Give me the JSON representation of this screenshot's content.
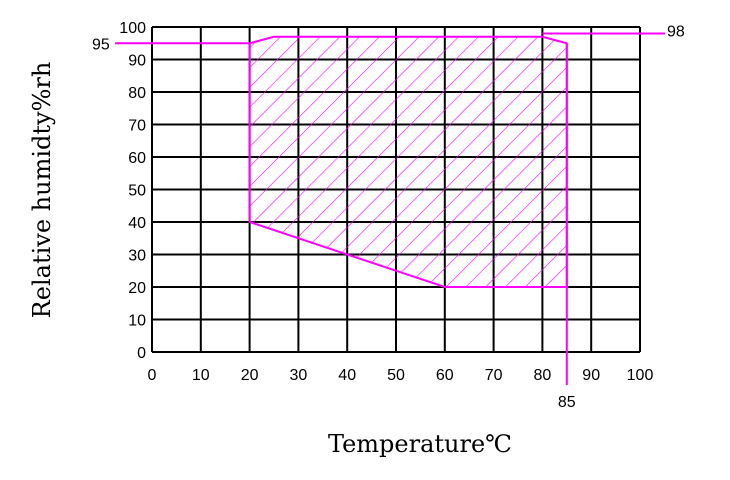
{
  "chart_data": {
    "type": "area",
    "title": "",
    "xlabel": "Temperature℃",
    "ylabel": "Relative humidty%rh",
    "xlim": [
      0,
      100
    ],
    "ylim": [
      0,
      100
    ],
    "x_ticks": [
      "0",
      "10",
      "20",
      "30",
      "40",
      "50",
      "60",
      "70",
      "80",
      "90",
      "100"
    ],
    "y_ticks": [
      "0",
      "10",
      "20",
      "30",
      "40",
      "50",
      "60",
      "70",
      "80",
      "90",
      "100"
    ],
    "grid": true,
    "series": [
      {
        "values": [
          {
            "x": 20,
            "y": 40
          },
          {
            "x": 20,
            "y": 95
          },
          {
            "x": 25,
            "y": 97
          },
          {
            "x": 80,
            "y": 97
          },
          {
            "x": 85,
            "y": 95
          },
          {
            "x": 85,
            "y": 20
          },
          {
            "x": 60,
            "y": 20
          }
        ],
        "color": "#ff00ff",
        "fill_pattern": "diagonal-hatch"
      }
    ],
    "reference_lines": [
      {
        "axis": "y",
        "value": 95,
        "label": "95",
        "side": "left"
      },
      {
        "axis": "y",
        "value": 98,
        "label": "98",
        "side": "right"
      },
      {
        "axis": "x",
        "value": 85,
        "label": "85",
        "side": "bottom"
      }
    ]
  }
}
